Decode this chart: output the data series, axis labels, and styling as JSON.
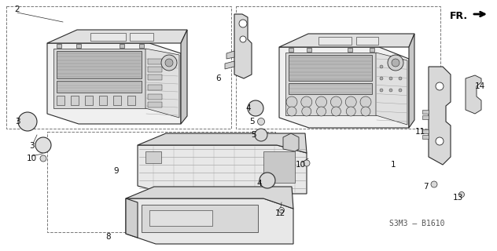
{
  "bg_color": "#ffffff",
  "diagram_code": "S3M3 – B1610",
  "fr_label": "FR.",
  "line_color": "#2a2a2a",
  "label_color": "#111111",
  "font_size": 7.5,
  "dashed_color": "#777777",
  "gray_fill": "#e8e8e8",
  "dark_fill": "#b0b0b0",
  "mid_fill": "#d0d0d0"
}
